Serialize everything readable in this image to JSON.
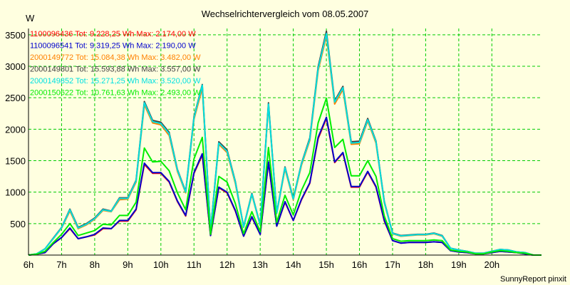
{
  "chart_data": {
    "type": "line",
    "title": "Wechselrichtervergleich vom 08.05.2007",
    "ylabel": "W",
    "footer": "SunnyReport pinxit",
    "x_start_hour": 6,
    "x_step_hours": 0.25,
    "ylim": [
      0,
      3600
    ],
    "xlim_hours": [
      6,
      21.5
    ],
    "grid": true,
    "legend_position": "top-left",
    "colors": {
      "background": "#ffffe0",
      "plot_background": "#ffffe0",
      "grid": "#00cc00"
    },
    "xticks": [
      "6h",
      "7h",
      "8h",
      "9h",
      "10h",
      "11h",
      "12h",
      "13h",
      "14h",
      "15h",
      "16h",
      "17h",
      "18h",
      "19h",
      "20h"
    ],
    "yticks": [
      "500",
      "1000",
      "1500",
      "2000",
      "2500",
      "3000",
      "3500"
    ],
    "yticks_values": [
      500,
      1000,
      1500,
      2000,
      2500,
      3000,
      3500
    ],
    "series": [
      {
        "name": "1100096436 Tot: 9.228,25 Wh Max: 2.174,00 W",
        "color": "#ff0000",
        "values": [
          0,
          15,
          40,
          180,
          280,
          420,
          260,
          290,
          320,
          420,
          420,
          540,
          540,
          720,
          1440,
          1300,
          1300,
          1160,
          850,
          620,
          1300,
          1590,
          310,
          1070,
          990,
          700,
          300,
          600,
          330,
          1470,
          460,
          840,
          550,
          880,
          1140,
          1850,
          2170,
          1470,
          1620,
          1080,
          1080,
          1320,
          1080,
          540,
          230,
          190,
          200,
          200,
          200,
          210,
          200,
          70,
          50,
          40,
          20,
          20,
          40,
          60,
          50,
          40,
          20,
          0,
          0
        ]
      },
      {
        "name": "1100096541 Tot: 9.319,25 Wh Max: 2.190,00 W",
        "color": "#0000cc",
        "values": [
          0,
          15,
          40,
          180,
          280,
          430,
          260,
          290,
          330,
          430,
          420,
          550,
          550,
          730,
          1460,
          1310,
          1310,
          1170,
          860,
          630,
          1310,
          1610,
          310,
          1080,
          1000,
          710,
          300,
          610,
          330,
          1480,
          460,
          850,
          550,
          890,
          1150,
          1870,
          2190,
          1480,
          1630,
          1090,
          1090,
          1330,
          1090,
          550,
          230,
          190,
          200,
          200,
          200,
          210,
          200,
          70,
          50,
          40,
          20,
          20,
          40,
          60,
          50,
          40,
          20,
          0,
          0
        ]
      },
      {
        "name": "2000149772 Tot: 15.084,38 Wh Max: 3.482,00 W",
        "color": "#ff8000",
        "values": [
          0,
          20,
          100,
          260,
          430,
          700,
          420,
          480,
          570,
          710,
          690,
          880,
          890,
          1160,
          2390,
          2100,
          2070,
          1900,
          1330,
          990,
          2160,
          2650,
          380,
          1760,
          1630,
          1140,
          440,
          960,
          470,
          2380,
          660,
          1370,
          880,
          1430,
          1820,
          2930,
          3480,
          2400,
          2630,
          1760,
          1770,
          2130,
          1780,
          830,
          340,
          300,
          310,
          320,
          320,
          340,
          300,
          110,
          80,
          60,
          30,
          30,
          60,
          90,
          80,
          50,
          40,
          0,
          0
        ]
      },
      {
        "name": "2000149801 Tot: 15.593,88 Wh Max: 3.557,00 W",
        "color": "#404040",
        "values": [
          0,
          20,
          100,
          270,
          440,
          730,
          440,
          500,
          590,
          730,
          700,
          910,
          910,
          1190,
          2440,
          2140,
          2110,
          1950,
          1360,
          1010,
          2200,
          2710,
          390,
          1800,
          1670,
          1170,
          450,
          980,
          480,
          2420,
          670,
          1400,
          900,
          1460,
          1860,
          2990,
          3557,
          2450,
          2680,
          1800,
          1810,
          2170,
          1810,
          850,
          350,
          310,
          320,
          330,
          330,
          350,
          310,
          110,
          80,
          60,
          30,
          30,
          60,
          90,
          80,
          50,
          40,
          0,
          0
        ]
      },
      {
        "name": "2000149852 Tot: 15.271,25 Wh Max: 3.520,00 W",
        "color": "#00e0e0",
        "values": [
          0,
          20,
          100,
          265,
          435,
          720,
          430,
          490,
          580,
          720,
          695,
          900,
          900,
          1180,
          2420,
          2120,
          2090,
          1930,
          1350,
          1000,
          2180,
          2700,
          385,
          1780,
          1650,
          1160,
          445,
          970,
          475,
          2400,
          665,
          1390,
          890,
          1450,
          1840,
          2960,
          3520,
          2430,
          2660,
          1780,
          1790,
          2150,
          1800,
          840,
          345,
          305,
          315,
          325,
          325,
          345,
          305,
          110,
          80,
          60,
          30,
          30,
          60,
          90,
          80,
          50,
          40,
          0,
          0
        ]
      },
      {
        "name": "2000150622 Tot: 10.761,63 Wh Max: 2.493,00 W",
        "color": "#00ee00",
        "values": [
          0,
          15,
          60,
          200,
          330,
          500,
          310,
          350,
          390,
          490,
          480,
          630,
          630,
          840,
          1700,
          1480,
          1490,
          1340,
          990,
          720,
          1530,
          1870,
          330,
          1250,
          1160,
          820,
          340,
          690,
          370,
          1710,
          520,
          950,
          640,
          1030,
          1310,
          2100,
          2493,
          1710,
          1840,
          1260,
          1260,
          1500,
          1250,
          620,
          260,
          220,
          230,
          230,
          230,
          240,
          230,
          80,
          60,
          50,
          20,
          20,
          50,
          70,
          60,
          40,
          30,
          0,
          0
        ]
      }
    ]
  }
}
